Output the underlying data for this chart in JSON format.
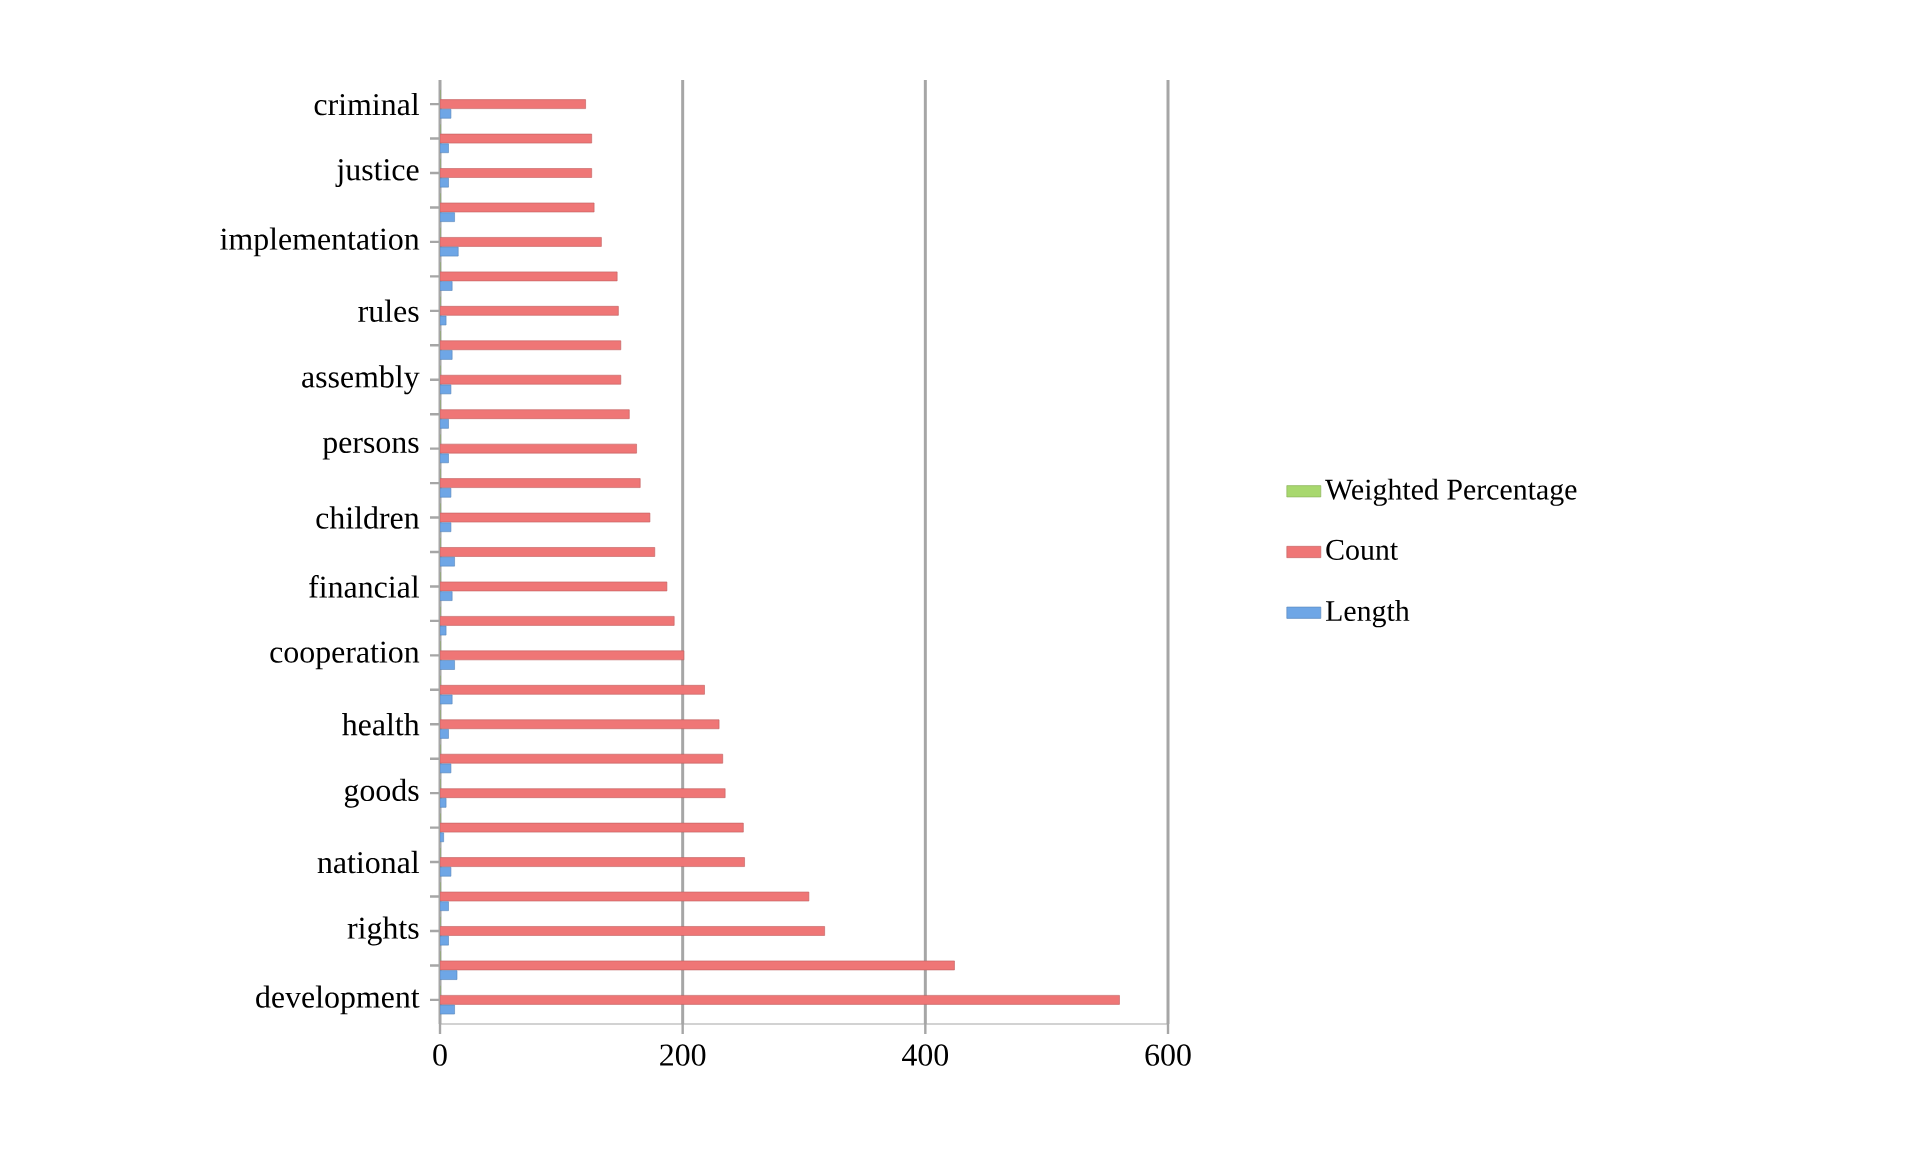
{
  "chart_data": {
    "type": "bar",
    "orientation": "horizontal",
    "categories": [
      "criminal",
      null,
      "justice",
      null,
      "implementation",
      null,
      "rules",
      null,
      "assembly",
      null,
      "persons",
      null,
      "children",
      null,
      "financial",
      null,
      "cooperation",
      null,
      "health",
      null,
      "goods",
      null,
      "national",
      null,
      "rights",
      null,
      "development"
    ],
    "series": [
      {
        "name": "Weighted Percentage",
        "color": "#a8d86e",
        "values": [
          0,
          0,
          0,
          0,
          0,
          0,
          0,
          0,
          0,
          0,
          0,
          0,
          0,
          0,
          0,
          0,
          0,
          0,
          0,
          0,
          0,
          0,
          0,
          0,
          0,
          0,
          0
        ]
      },
      {
        "name": "Count",
        "color": "#ef7676",
        "values": [
          120,
          125,
          125,
          127,
          133,
          146,
          147,
          149,
          149,
          156,
          162,
          165,
          173,
          177,
          187,
          193,
          201,
          218,
          230,
          233,
          235,
          250,
          251,
          304,
          317,
          424,
          560
        ]
      },
      {
        "name": "Length",
        "color": "#6ea6e6",
        "values": [
          9,
          7,
          7,
          12,
          15,
          10,
          5,
          10,
          9,
          7,
          7,
          9,
          9,
          12,
          10,
          5,
          12,
          10,
          7,
          9,
          5,
          3,
          9,
          7,
          7,
          14,
          12
        ]
      }
    ],
    "xlim": [
      0,
      600
    ],
    "xticks": [
      0,
      200,
      400,
      600
    ],
    "grid": "x",
    "legend": "right"
  }
}
